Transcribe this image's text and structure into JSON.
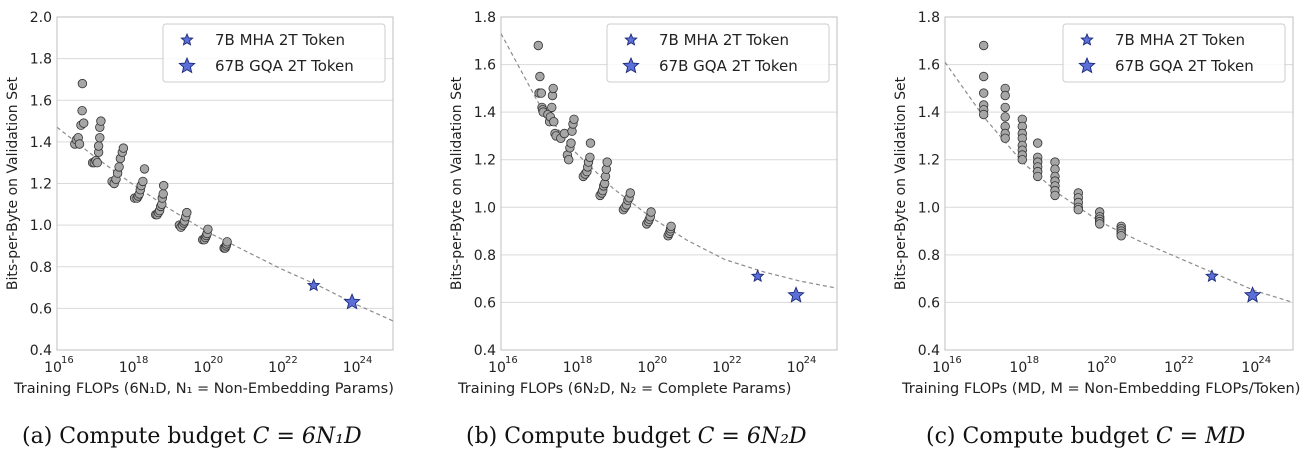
{
  "figure": {
    "captions": [
      {
        "label": "(a)",
        "text": "Compute budget",
        "formula": "C = 6N₁D"
      },
      {
        "label": "(b)",
        "text": "Compute budget",
        "formula": "C = 6N₂D"
      },
      {
        "label": "(c)",
        "text": "Compute budget",
        "formula": "C = MD"
      }
    ]
  },
  "colors": {
    "point_fill": "#a6a6a6",
    "point_stroke": "#333333",
    "star_fill": "#5b6fd6",
    "star_stroke": "#1b2a7a",
    "fit_line": "#8c8c8c",
    "grid": "#d9d9d9",
    "axis": "#bfbfbf"
  },
  "chart_data": [
    {
      "type": "scatter",
      "panel": "a",
      "xlabel": "Training FLOPs (6N₁D, N₁ = Non-Embedding Params)",
      "ylabel": "Bits-per-Byte on Validation Set",
      "xscale": "log",
      "xlim": [
        1e+16,
        1e+25
      ],
      "ylim": [
        0.4,
        2.0
      ],
      "yticks": [
        0.4,
        0.6,
        0.8,
        1.0,
        1.2,
        1.4,
        1.6,
        1.8,
        2.0
      ],
      "xticks": [
        {
          "value": 1e+16,
          "label": "10",
          "exp": "16"
        },
        {
          "value": 1e+18,
          "label": "10",
          "exp": "18"
        },
        {
          "value": 1e+20,
          "label": "10",
          "exp": "20"
        },
        {
          "value": 1e+22,
          "label": "10",
          "exp": "22"
        },
        {
          "value": 1e+24,
          "label": "10",
          "exp": "24"
        }
      ],
      "grid": "horizontal",
      "legend": {
        "position": "top-right",
        "entries": [
          "7B MHA 2T Token",
          "67B GQA 2T Token"
        ]
      },
      "fit": {
        "x": [
          1e+16,
          1e+17,
          1e+18,
          1e+19,
          1e+20,
          1e+21,
          1e+22,
          1e+23,
          1e+24,
          1e+25
        ],
        "y": [
          1.47,
          1.33,
          1.2,
          1.08,
          0.97,
          0.88,
          0.79,
          0.71,
          0.62,
          0.54
        ]
      },
      "points": [
        [
          3e+16,
          1.39
        ],
        [
          3.3e+16,
          1.41
        ],
        [
          3.7e+16,
          1.42
        ],
        [
          4e+16,
          1.39
        ],
        [
          4.4e+16,
          1.48
        ],
        [
          4.7e+16,
          1.55
        ],
        [
          4.8e+16,
          1.68
        ],
        [
          5.2e+16,
          1.49
        ],
        [
          9e+16,
          1.3
        ],
        [
          1e+17,
          1.3
        ],
        [
          1.1e+17,
          1.31
        ],
        [
          1.2e+17,
          1.3
        ],
        [
          1.3e+17,
          1.35
        ],
        [
          1.3e+17,
          1.38
        ],
        [
          1.4e+17,
          1.42
        ],
        [
          1.4e+17,
          1.47
        ],
        [
          1.5e+17,
          1.5
        ],
        [
          3e+17,
          1.21
        ],
        [
          3.4e+17,
          1.2
        ],
        [
          3.8e+17,
          1.22
        ],
        [
          4.2e+17,
          1.25
        ],
        [
          4.6e+17,
          1.28
        ],
        [
          5e+17,
          1.32
        ],
        [
          5.6e+17,
          1.35
        ],
        [
          6e+17,
          1.37
        ],
        [
          1.2e+18,
          1.13
        ],
        [
          1.4e+18,
          1.13
        ],
        [
          1.5e+18,
          1.14
        ],
        [
          1.6e+18,
          1.15
        ],
        [
          1.7e+18,
          1.17
        ],
        [
          1.8e+18,
          1.19
        ],
        [
          2e+18,
          1.21
        ],
        [
          2.2e+18,
          1.27
        ],
        [
          4.4e+18,
          1.05
        ],
        [
          4.8e+18,
          1.05
        ],
        [
          5.2e+18,
          1.06
        ],
        [
          5.6e+18,
          1.07
        ],
        [
          6e+18,
          1.09
        ],
        [
          6.4e+18,
          1.1
        ],
        [
          6.6e+18,
          1.13
        ],
        [
          7e+18,
          1.15
        ],
        [
          7.2e+18,
          1.19
        ],
        [
          1.9e+19,
          1.0
        ],
        [
          2.1e+19,
          0.99
        ],
        [
          2.3e+19,
          1.0
        ],
        [
          2.5e+19,
          1.01
        ],
        [
          2.6e+19,
          1.02
        ],
        [
          2.8e+19,
          1.04
        ],
        [
          3e+19,
          1.06
        ],
        [
          8e+19,
          0.93
        ],
        [
          8.8e+19,
          0.93
        ],
        [
          9.5e+19,
          0.94
        ],
        [
          1e+20,
          0.95
        ],
        [
          1.05e+20,
          0.96
        ],
        [
          1.1e+20,
          0.98
        ],
        [
          3e+20,
          0.89
        ],
        [
          3.2e+20,
          0.89
        ],
        [
          3.4e+20,
          0.9
        ],
        [
          3.5e+20,
          0.91
        ],
        [
          3.6e+20,
          0.92
        ]
      ],
      "stars": [
        {
          "series": "7B MHA 2T Token",
          "x": 7.5e+22,
          "y": 0.71,
          "size": "small"
        },
        {
          "series": "67B GQA 2T Token",
          "x": 8e+23,
          "y": 0.63,
          "size": "large"
        }
      ]
    },
    {
      "type": "scatter",
      "panel": "b",
      "xlabel": "Training FLOPs (6N₂D, N₂ = Complete Params)",
      "ylabel": "Bits-per-Byte on Validation Set",
      "xscale": "log",
      "xlim": [
        1e+16,
        1e+25
      ],
      "ylim": [
        0.4,
        1.8
      ],
      "yticks": [
        0.4,
        0.6,
        0.8,
        1.0,
        1.2,
        1.4,
        1.6,
        1.8
      ],
      "xticks": [
        {
          "value": 1e+16,
          "label": "10",
          "exp": "16"
        },
        {
          "value": 1e+18,
          "label": "10",
          "exp": "18"
        },
        {
          "value": 1e+20,
          "label": "10",
          "exp": "20"
        },
        {
          "value": 1e+22,
          "label": "10",
          "exp": "22"
        },
        {
          "value": 1e+24,
          "label": "10",
          "exp": "24"
        }
      ],
      "grid": "horizontal",
      "legend": {
        "position": "top-right",
        "entries": [
          "7B MHA 2T Token",
          "67B GQA 2T Token"
        ]
      },
      "fit": {
        "x": [
          1e+16,
          1e+17,
          1e+18,
          1e+19,
          1e+20,
          1e+21,
          1e+22,
          1e+23,
          1e+24,
          1e+25
        ],
        "y": [
          1.73,
          1.44,
          1.23,
          1.08,
          0.96,
          0.86,
          0.78,
          0.73,
          0.69,
          0.66
        ]
      },
      "points": [
        [
          1e+17,
          1.68
        ],
        [
          1.05e+17,
          1.48
        ],
        [
          1.1e+17,
          1.55
        ],
        [
          1.2e+17,
          1.48
        ],
        [
          1.25e+17,
          1.42
        ],
        [
          1.3e+17,
          1.41
        ],
        [
          1.35e+17,
          1.4
        ],
        [
          1.8e+17,
          1.39
        ],
        [
          2e+17,
          1.36
        ],
        [
          2.1e+17,
          1.38
        ],
        [
          2.3e+17,
          1.42
        ],
        [
          2.4e+17,
          1.47
        ],
        [
          2.5e+17,
          1.5
        ],
        [
          2.6e+17,
          1.36
        ],
        [
          2.8e+17,
          1.31
        ],
        [
          3e+17,
          1.3
        ],
        [
          4e+17,
          1.29
        ],
        [
          5e+17,
          1.31
        ],
        [
          6e+17,
          1.22
        ],
        [
          6.5e+17,
          1.2
        ],
        [
          7e+17,
          1.25
        ],
        [
          7.5e+17,
          1.27
        ],
        [
          8e+17,
          1.32
        ],
        [
          8.5e+17,
          1.35
        ],
        [
          9e+17,
          1.37
        ],
        [
          1.6e+18,
          1.13
        ],
        [
          1.8e+18,
          1.14
        ],
        [
          2e+18,
          1.15
        ],
        [
          2.1e+18,
          1.17
        ],
        [
          2.2e+18,
          1.19
        ],
        [
          2.4e+18,
          1.21
        ],
        [
          2.5e+18,
          1.27
        ],
        [
          4.5e+18,
          1.05
        ],
        [
          5e+18,
          1.06
        ],
        [
          5.3e+18,
          1.07
        ],
        [
          5.6e+18,
          1.09
        ],
        [
          6e+18,
          1.1
        ],
        [
          6.3e+18,
          1.13
        ],
        [
          6.6e+18,
          1.16
        ],
        [
          7e+18,
          1.19
        ],
        [
          1.9e+19,
          0.99
        ],
        [
          2.1e+19,
          1.0
        ],
        [
          2.3e+19,
          1.01
        ],
        [
          2.5e+19,
          1.03
        ],
        [
          2.7e+19,
          1.04
        ],
        [
          2.9e+19,
          1.06
        ],
        [
          8e+19,
          0.93
        ],
        [
          8.8e+19,
          0.94
        ],
        [
          9.4e+19,
          0.95
        ],
        [
          1e+20,
          0.96
        ],
        [
          1.05e+20,
          0.98
        ],
        [
          3e+20,
          0.88
        ],
        [
          3.2e+20,
          0.89
        ],
        [
          3.4e+20,
          0.9
        ],
        [
          3.5e+20,
          0.91
        ],
        [
          3.6e+20,
          0.92
        ]
      ],
      "stars": [
        {
          "series": "7B MHA 2T Token",
          "x": 7.5e+22,
          "y": 0.71,
          "size": "small"
        },
        {
          "series": "67B GQA 2T Token",
          "x": 8e+23,
          "y": 0.63,
          "size": "large"
        }
      ]
    },
    {
      "type": "scatter",
      "panel": "c",
      "xlabel": "Training FLOPs (MD, M = Non-Embedding FLOPs/Token)",
      "ylabel": "Bits-per-Byte on Validation Set",
      "xscale": "log",
      "xlim": [
        1e+16,
        1e+25
      ],
      "ylim": [
        0.4,
        1.8
      ],
      "yticks": [
        0.4,
        0.6,
        0.8,
        1.0,
        1.2,
        1.4,
        1.6,
        1.8
      ],
      "xticks": [
        {
          "value": 1e+16,
          "label": "10",
          "exp": "16"
        },
        {
          "value": 1e+18,
          "label": "10",
          "exp": "18"
        },
        {
          "value": 1e+20,
          "label": "10",
          "exp": "20"
        },
        {
          "value": 1e+22,
          "label": "10",
          "exp": "22"
        },
        {
          "value": 1e+24,
          "label": "10",
          "exp": "24"
        }
      ],
      "grid": "horizontal",
      "legend": {
        "position": "top-right",
        "entries": [
          "7B MHA 2T Token",
          "67B GQA 2T Token"
        ]
      },
      "fit": {
        "x": [
          1e+16,
          1e+17,
          1e+18,
          1e+19,
          1e+20,
          1e+21,
          1e+22,
          1e+23,
          1e+24,
          1e+25
        ],
        "y": [
          1.61,
          1.38,
          1.19,
          1.05,
          0.94,
          0.86,
          0.79,
          0.72,
          0.65,
          0.6
        ]
      },
      "points": [
        [
          1e+17,
          1.68
        ],
        [
          1e+17,
          1.55
        ],
        [
          1e+17,
          1.48
        ],
        [
          1e+17,
          1.43
        ],
        [
          1e+17,
          1.41
        ],
        [
          1e+17,
          1.39
        ],
        [
          3.6e+17,
          1.5
        ],
        [
          3.6e+17,
          1.47
        ],
        [
          3.6e+17,
          1.42
        ],
        [
          3.6e+17,
          1.38
        ],
        [
          3.6e+17,
          1.34
        ],
        [
          3.6e+17,
          1.31
        ],
        [
          3.6e+17,
          1.29
        ],
        [
          1e+18,
          1.37
        ],
        [
          1e+18,
          1.34
        ],
        [
          1e+18,
          1.31
        ],
        [
          1e+18,
          1.29
        ],
        [
          1e+18,
          1.26
        ],
        [
          1e+18,
          1.24
        ],
        [
          1e+18,
          1.22
        ],
        [
          1e+18,
          1.2
        ],
        [
          2.5e+18,
          1.27
        ],
        [
          2.5e+18,
          1.21
        ],
        [
          2.5e+18,
          1.19
        ],
        [
          2.5e+18,
          1.17
        ],
        [
          2.5e+18,
          1.15
        ],
        [
          2.5e+18,
          1.13
        ],
        [
          7e+18,
          1.19
        ],
        [
          7e+18,
          1.16
        ],
        [
          7e+18,
          1.13
        ],
        [
          7e+18,
          1.11
        ],
        [
          7e+18,
          1.09
        ],
        [
          7e+18,
          1.07
        ],
        [
          7e+18,
          1.05
        ],
        [
          2.8e+19,
          1.06
        ],
        [
          2.8e+19,
          1.04
        ],
        [
          2.8e+19,
          1.02
        ],
        [
          2.8e+19,
          1.0
        ],
        [
          2.8e+19,
          0.99
        ],
        [
          1e+20,
          0.98
        ],
        [
          1e+20,
          0.96
        ],
        [
          1e+20,
          0.95
        ],
        [
          1e+20,
          0.94
        ],
        [
          1e+20,
          0.93
        ],
        [
          3.6e+20,
          0.92
        ],
        [
          3.6e+20,
          0.91
        ],
        [
          3.6e+20,
          0.9
        ],
        [
          3.6e+20,
          0.89
        ],
        [
          3.6e+20,
          0.88
        ]
      ],
      "stars": [
        {
          "series": "7B MHA 2T Token",
          "x": 8e+22,
          "y": 0.71,
          "size": "small"
        },
        {
          "series": "67B GQA 2T Token",
          "x": 9e+23,
          "y": 0.63,
          "size": "large"
        }
      ]
    }
  ]
}
